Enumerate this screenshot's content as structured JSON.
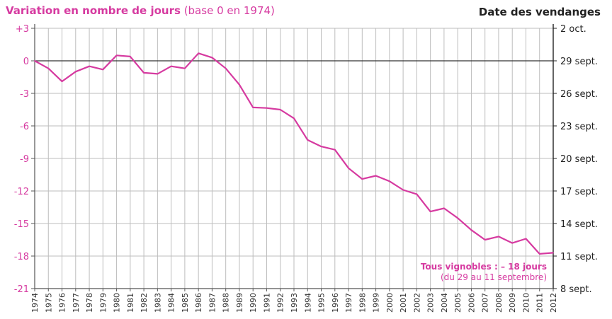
{
  "chart_data": {
    "type": "line",
    "title_bold": "Variation en nombre de jours",
    "title_normal": "(base 0 en 1974)",
    "right_axis_title": "Date des vendanges",
    "colors": {
      "line": "#d63aa0",
      "left_axis": "#d63aa0",
      "right_axis": "#222222",
      "grid": "#bdbdbd"
    },
    "x": [
      1974,
      1975,
      1976,
      1977,
      1978,
      1979,
      1980,
      1981,
      1982,
      1983,
      1984,
      1985,
      1986,
      1987,
      1988,
      1989,
      1990,
      1991,
      1992,
      1993,
      1994,
      1995,
      1996,
      1997,
      1998,
      1999,
      2000,
      2001,
      2002,
      2003,
      2004,
      2005,
      2006,
      2007,
      2008,
      2009,
      2010,
      2011,
      2012
    ],
    "x_tick_labels": [
      "1974",
      "1975",
      "1976",
      "1977",
      "1978",
      "1979",
      "1980",
      "1981",
      "1982",
      "1983",
      "1984",
      "1985",
      "1986",
      "1987",
      "1988",
      "1989",
      "1990",
      "1991",
      "1992",
      "1993",
      "1994",
      "1995",
      "1996",
      "1997",
      "1998",
      "1999",
      "2000",
      "2001",
      "2002",
      "2003",
      "2004",
      "2005",
      "2006",
      "2007",
      "2008",
      "2009",
      "2010",
      "2011",
      "2012"
    ],
    "series": [
      {
        "values": [
          0,
          -0.7,
          -1.9,
          -1.0,
          -0.5,
          -0.8,
          0.5,
          0.4,
          -1.1,
          -1.2,
          -0.5,
          -0.7,
          0.7,
          0.3,
          -0.7,
          -2.2,
          -4.3,
          -4.35,
          -4.5,
          -5.3,
          -7.3,
          -7.9,
          -8.2,
          -9.9,
          -10.9,
          -10.6,
          -11.1,
          -11.9,
          -12.3,
          -13.9,
          -13.6,
          -14.5,
          -15.6,
          -16.5,
          -16.2,
          -16.8,
          -16.4,
          -17.8,
          -17.7
        ]
      }
    ],
    "ylim": [
      -21,
      3
    ],
    "left_ticks": [
      3,
      0,
      -3,
      -6,
      -9,
      -12,
      -15,
      -18,
      -21
    ],
    "left_tick_labels": [
      "+3",
      "0",
      "-3",
      "-6",
      "-9",
      "-12",
      "-15",
      "-18",
      "-21"
    ],
    "right_tick_labels": [
      "2 oct.",
      "29 sept.",
      "26 sept.",
      "23 sept.",
      "20 sept.",
      "17 sept.",
      "14 sept.",
      "11 sept.",
      "8 sept."
    ],
    "zero_line": true,
    "grid": true,
    "annotation": {
      "line1": "Tous vignobles : – 18 jours",
      "line2": "(du 29 au 11 septembre)"
    }
  }
}
